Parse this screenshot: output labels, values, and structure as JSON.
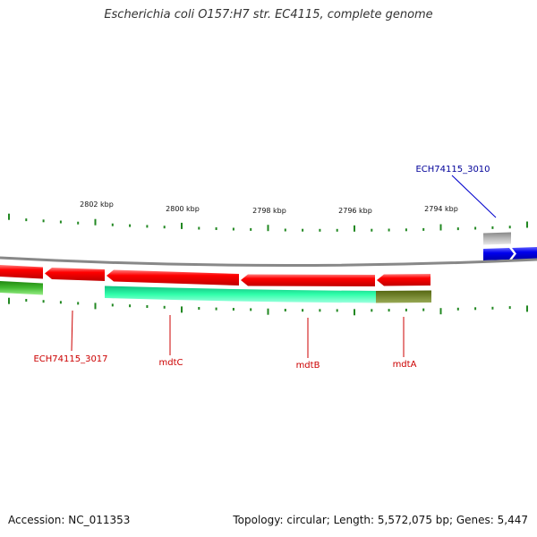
{
  "title": "Escherichia coli O157:H7 str. EC4115, complete genome",
  "footer": {
    "accession": "Accession: NC_011353",
    "topology": "Topology: circular; Length: 5,572,075 bp; Genes: 5,447"
  },
  "ruler_labels": [
    "2802 kbp",
    "2800 kbp",
    "2798 kbp",
    "2796 kbp",
    "2794 kbp"
  ],
  "gene_labels": {
    "ech3010": "ECH74115_3010",
    "ech3017": "ECH74115_3017",
    "mdtC": "mdtC",
    "mdtB": "mdtB",
    "mdtA": "mdtA"
  },
  "colors": {
    "forward_gene": "#0000ee",
    "reverse_gene": "#ee0000",
    "reverse_label": "#cc0000",
    "forward_label": "#000099",
    "cog_teal": "#22ee99",
    "cog_olive": "#667722",
    "cog_green": "#33aa22",
    "cog_grey": "#bbbbbb",
    "tick": "#228822",
    "backbone": "#888888"
  }
}
